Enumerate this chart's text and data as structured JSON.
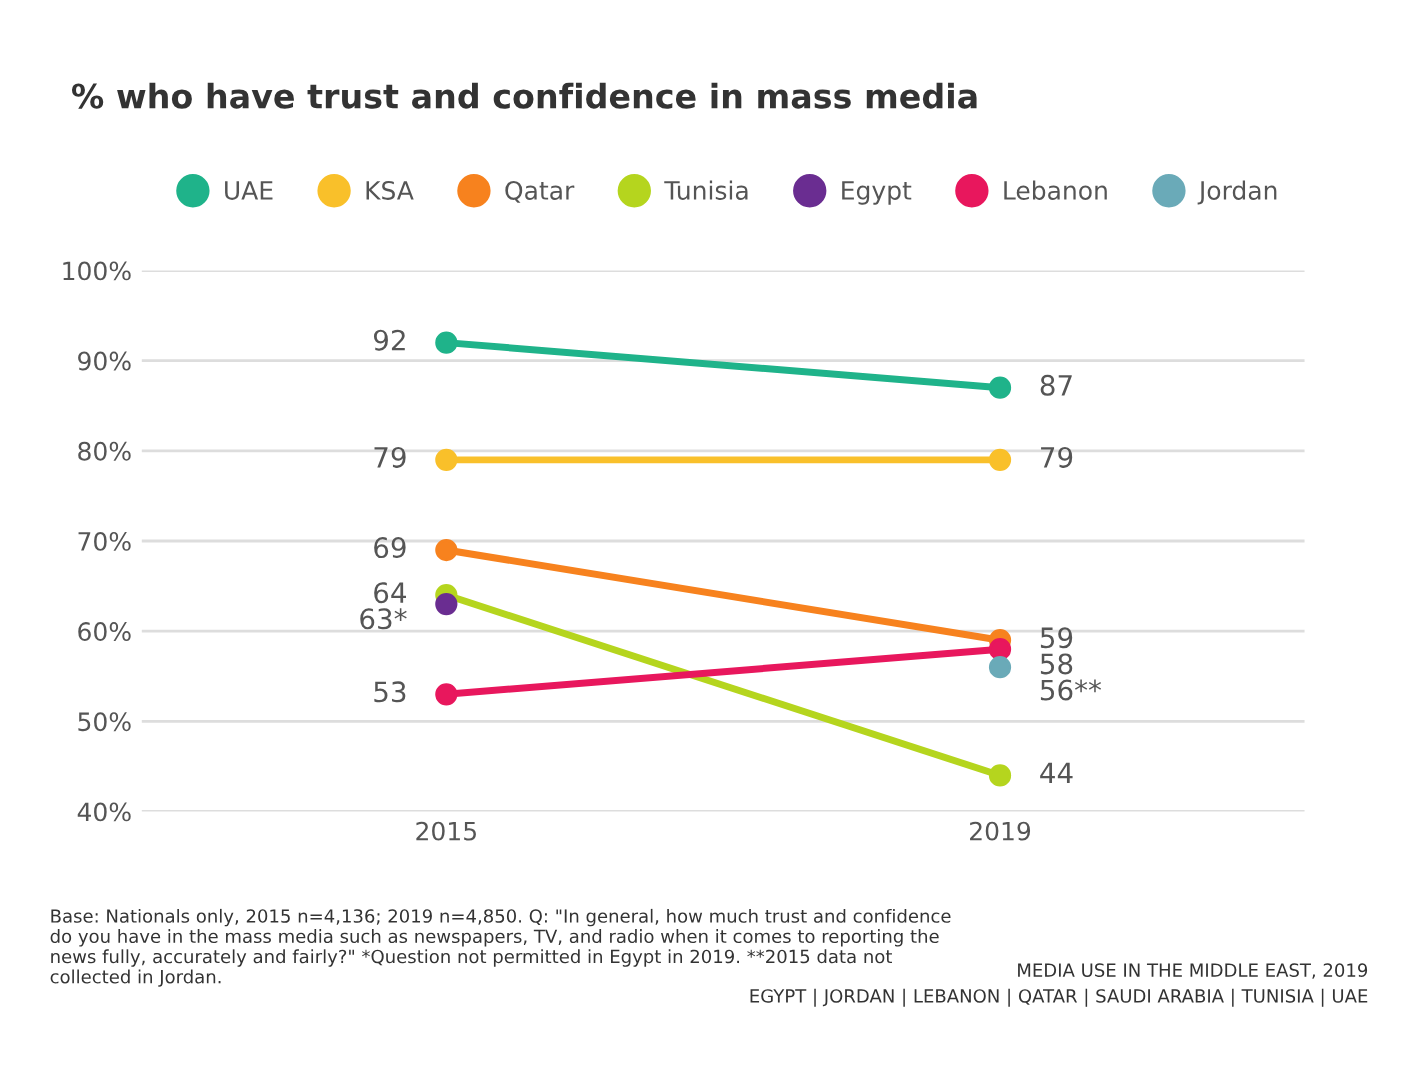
{
  "chart_data": {
    "type": "line",
    "title": "% who have trust and confidence in mass media",
    "categories": [
      "2015",
      "2019"
    ],
    "series": [
      {
        "name": "UAE",
        "color": "#1fb38a",
        "values": [
          92,
          87
        ],
        "value_labels": [
          "92",
          "87"
        ]
      },
      {
        "name": "KSA",
        "color": "#f9c02a",
        "values": [
          79,
          79
        ],
        "value_labels": [
          "79",
          "79"
        ]
      },
      {
        "name": "Qatar",
        "color": "#f7821e",
        "values": [
          69,
          59
        ],
        "value_labels": [
          "69",
          "59"
        ]
      },
      {
        "name": "Tunisia",
        "color": "#b5d51e",
        "values": [
          64,
          44
        ],
        "value_labels": [
          "64",
          "44"
        ]
      },
      {
        "name": "Egypt",
        "color": "#6a2d91",
        "values": [
          63,
          null
        ],
        "value_labels": [
          "63*",
          null
        ]
      },
      {
        "name": "Lebanon",
        "color": "#e8175d",
        "values": [
          53,
          58
        ],
        "value_labels": [
          "53",
          "58"
        ]
      },
      {
        "name": "Jordan",
        "color": "#6aaab8",
        "values": [
          null,
          56
        ],
        "value_labels": [
          null,
          "56**"
        ]
      }
    ],
    "ylim": [
      40,
      100
    ],
    "yticks": [
      {
        "value": 40,
        "label": "40%"
      },
      {
        "value": 50,
        "label": "50%"
      },
      {
        "value": 60,
        "label": "60%"
      },
      {
        "value": 70,
        "label": "70%"
      },
      {
        "value": 80,
        "label": "80%"
      },
      {
        "value": 90,
        "label": "90%"
      },
      {
        "value": 100,
        "label": "100%"
      }
    ],
    "grid": "y",
    "legend": "top",
    "marker": "circle",
    "line_style": "solid",
    "annotations": [
      "Base: Nationals only, 2015 n=4,136; 2019 n=4,850. Q: \"In general, how much trust and confidence do you have in the mass media such as newspapers, TV, and radio when it comes to reporting the news fully, accurately and fairly?\" *Question not permitted in Egypt in 2019. **2015 data not collected in Jordan.",
      "MEDIA USE IN THE MIDDLE EAST, 2019\nEGYPT | JORDAN | LEBANON | QATAR | SAUDI ARABIA | TUNISIA | UAE"
    ]
  }
}
